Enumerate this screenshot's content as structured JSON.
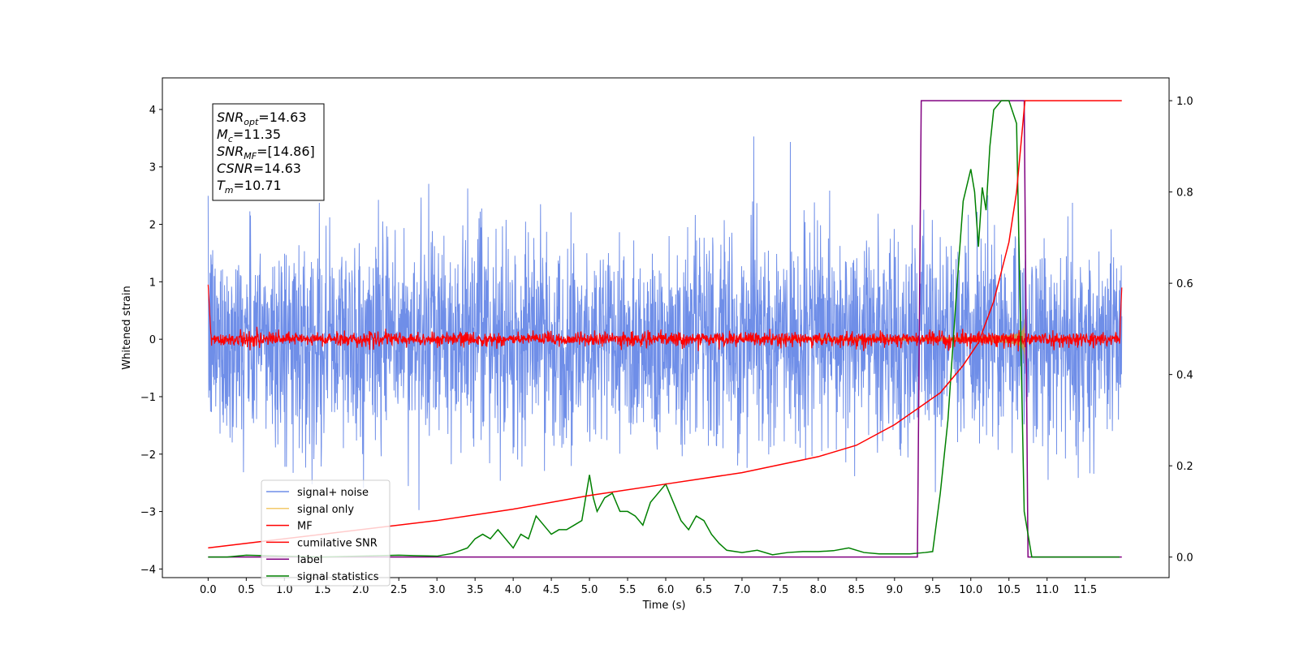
{
  "chart_data": {
    "type": "line",
    "title": "",
    "xlabel": "Time (s)",
    "ylabel": "Whitened strain",
    "xlim": [
      -0.6,
      12.6
    ],
    "ylim": [
      -4.15,
      4.55
    ],
    "y2lim": [
      -0.045,
      1.05
    ],
    "x_ticks": [
      "0.0",
      "0.5",
      "1.0",
      "1.5",
      "2.0",
      "2.5",
      "3.0",
      "3.5",
      "4.0",
      "4.5",
      "5.0",
      "5.5",
      "6.0",
      "6.5",
      "7.0",
      "7.5",
      "8.0",
      "8.5",
      "9.0",
      "9.5",
      "10.0",
      "10.5",
      "11.0",
      "11.5"
    ],
    "y_ticks": [
      "4",
      "3",
      "2",
      "1",
      "0",
      "−1",
      "−2",
      "−3",
      "−4"
    ],
    "y2_ticks": [
      "1.0",
      "0.8",
      "0.6",
      "0.4",
      "0.2",
      "0.0"
    ],
    "grid": false,
    "legend_position": "lower-left",
    "info_box": [
      {
        "sym": "SNR",
        "sub": "opt",
        "val": "=14.63"
      },
      {
        "sym": "M",
        "sub": "c",
        "val": "=11.35"
      },
      {
        "sym": "SNR",
        "sub": "MF",
        "val": "=[14.86]"
      },
      {
        "sym": "CSNR",
        "sub": "",
        "val": "=14.63"
      },
      {
        "sym": "T",
        "sub": "m",
        "val": "=10.71"
      }
    ],
    "series": [
      {
        "name": "signal+ noise",
        "color": "#6f8ee8",
        "kind": "noise",
        "amplitude_std": 0.9,
        "x_range": [
          0.0,
          11.98
        ]
      },
      {
        "name": "signal only",
        "color": "#f3c96a",
        "kind": "chirp",
        "merger_time": 10.71,
        "x_range": [
          0.0,
          11.98
        ]
      },
      {
        "name": "MF",
        "color": "#ff0000",
        "kind": "mf",
        "x_range": [
          0.0,
          11.98
        ]
      },
      {
        "name": "cumilative SNR",
        "color": "#ff0000",
        "axis": "right",
        "x": [
          0.0,
          1.0,
          2.0,
          3.0,
          4.0,
          5.0,
          6.0,
          7.0,
          8.0,
          8.5,
          9.0,
          9.3,
          9.6,
          9.9,
          10.1,
          10.3,
          10.5,
          10.6,
          10.71,
          11.98
        ],
        "values": [
          0.02,
          0.04,
          0.06,
          0.08,
          0.105,
          0.135,
          0.16,
          0.185,
          0.22,
          0.245,
          0.29,
          0.325,
          0.36,
          0.42,
          0.47,
          0.56,
          0.69,
          0.8,
          1.0,
          1.0
        ]
      },
      {
        "name": "label",
        "color": "#800080",
        "axis": "right",
        "x": [
          0.0,
          9.3,
          9.35,
          10.7,
          10.75,
          11.98
        ],
        "values": [
          0.0,
          0.0,
          1.0,
          1.0,
          0.0,
          0.0
        ]
      },
      {
        "name": "signal statistics",
        "color": "#008000",
        "axis": "right",
        "x": [
          0.0,
          0.25,
          0.5,
          1.0,
          1.5,
          2.0,
          2.5,
          3.0,
          3.2,
          3.4,
          3.5,
          3.6,
          3.7,
          3.8,
          4.0,
          4.1,
          4.2,
          4.3,
          4.4,
          4.5,
          4.6,
          4.7,
          4.8,
          4.9,
          5.0,
          5.05,
          5.1,
          5.2,
          5.3,
          5.4,
          5.5,
          5.6,
          5.7,
          5.8,
          5.9,
          6.0,
          6.05,
          6.1,
          6.2,
          6.3,
          6.4,
          6.5,
          6.6,
          6.7,
          6.8,
          7.0,
          7.2,
          7.4,
          7.6,
          7.8,
          8.0,
          8.2,
          8.4,
          8.6,
          8.8,
          9.0,
          9.2,
          9.4,
          9.5,
          9.6,
          9.7,
          9.8,
          9.9,
          10.0,
          10.05,
          10.1,
          10.15,
          10.2,
          10.25,
          10.3,
          10.4,
          10.5,
          10.6,
          10.7,
          10.8,
          10.9,
          11.1,
          11.5,
          11.95
        ],
        "values": [
          0.0,
          0.0,
          0.004,
          0.002,
          0.0,
          0.002,
          0.004,
          0.002,
          0.008,
          0.02,
          0.04,
          0.05,
          0.04,
          0.06,
          0.02,
          0.05,
          0.04,
          0.09,
          0.07,
          0.05,
          0.06,
          0.06,
          0.07,
          0.08,
          0.18,
          0.13,
          0.1,
          0.13,
          0.14,
          0.1,
          0.1,
          0.09,
          0.07,
          0.12,
          0.14,
          0.16,
          0.14,
          0.12,
          0.08,
          0.06,
          0.09,
          0.08,
          0.05,
          0.03,
          0.015,
          0.01,
          0.015,
          0.005,
          0.01,
          0.012,
          0.012,
          0.014,
          0.02,
          0.01,
          0.007,
          0.007,
          0.007,
          0.01,
          0.012,
          0.14,
          0.3,
          0.55,
          0.78,
          0.85,
          0.8,
          0.68,
          0.81,
          0.76,
          0.9,
          0.98,
          1.0,
          1.0,
          0.95,
          0.1,
          0.0,
          0.0,
          0.0,
          0.0,
          0.0
        ]
      }
    ]
  }
}
